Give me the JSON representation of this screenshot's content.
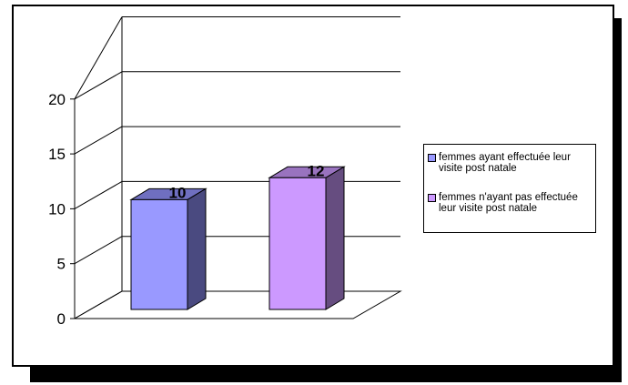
{
  "chart_data": {
    "type": "bar",
    "categories": [
      "femmes ayant effectuée leur visite post natale",
      "femmes n'ayant pas effectuée leur visite post natale"
    ],
    "values": [
      10,
      12
    ],
    "data_labels": [
      "10",
      "12"
    ],
    "y_ticks": [
      "0",
      "5",
      "10",
      "15",
      "20"
    ],
    "ylim": [
      0,
      25
    ],
    "grid": true,
    "three_d": true,
    "legend_position": "right",
    "title": "",
    "xlabel": "",
    "ylabel": "",
    "colors": {
      "bar1_front": "#9999ff",
      "bar1_side": "#4a4a80",
      "bar1_top": "#6f6fc0",
      "bar2_front": "#cc99ff",
      "bar2_side": "#664d80",
      "bar2_top": "#9973bf"
    }
  },
  "legend": {
    "items": [
      {
        "label": "femmes ayant effectuée leur visite post natale",
        "color": "#9999ff"
      },
      {
        "label": "femmes n'ayant pas effectuée leur visite post natale",
        "color": "#cc99ff"
      }
    ]
  }
}
